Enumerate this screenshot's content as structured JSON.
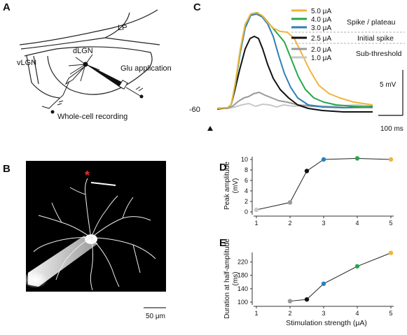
{
  "panels": {
    "a": {
      "letter": "A",
      "labels": {
        "lp": "LP",
        "dlgn": "dLGN",
        "vlgn": "vLGN",
        "glu": "Glu application",
        "wcr": "Whole-cell recording"
      }
    },
    "b": {
      "letter": "B",
      "scalebar": "50 μm",
      "marker": "*"
    },
    "c": {
      "letter": "C",
      "baseline_label": "-60",
      "scale_v": "5 mV",
      "scale_t": "100 ms",
      "legend": [
        {
          "label": "5.0 μA",
          "color": "#f0b43c"
        },
        {
          "label": "4.0 μA",
          "color": "#2aa64a"
        },
        {
          "label": "3.0 μA",
          "color": "#2c7fb8"
        },
        {
          "label": "2.5 μA",
          "color": "#111111"
        },
        {
          "label": "2.0 μA",
          "color": "#999999"
        },
        {
          "label": "1.0 μA",
          "color": "#c8c8c8"
        }
      ],
      "groups": {
        "spike_plateau": "Spike / plateau",
        "initial_spike": "Initial spike",
        "sub_threshold": "Sub-threshold"
      }
    },
    "d": {
      "letter": "D"
    },
    "e": {
      "letter": "E"
    }
  },
  "chart_data": [
    {
      "type": "line",
      "panel": "D",
      "ylabel_lines": [
        "Peak amplitude",
        "(mV)"
      ],
      "xlim": [
        1,
        5
      ],
      "ylim": [
        0,
        10
      ],
      "x_ticks": [
        "1",
        "2",
        "3",
        "4",
        "5"
      ],
      "y_ticks": [
        "0",
        "2",
        "4",
        "6",
        "8",
        "10"
      ],
      "x": [
        1.0,
        2.0,
        2.5,
        3.0,
        4.0,
        5.0
      ],
      "y": [
        0.4,
        1.8,
        7.8,
        10.0,
        10.2,
        10.0
      ],
      "point_colors": [
        "#c8c8c8",
        "#999999",
        "#111111",
        "#2c7fb8",
        "#2aa64a",
        "#f0b43c"
      ]
    },
    {
      "type": "line",
      "panel": "E",
      "ylabel_lines": [
        "Duration at half-amplitude",
        "(ms)"
      ],
      "xlabel": "Stimulation strength (μA)",
      "xlim": [
        1,
        5
      ],
      "ylim": [
        100,
        240
      ],
      "x_ticks": [
        "1",
        "2",
        "3",
        "4",
        "5"
      ],
      "y_ticks": [
        "100",
        "140",
        "180",
        "220"
      ],
      "x": [
        2.0,
        2.5,
        3.0,
        4.0,
        5.0
      ],
      "y": [
        103,
        108,
        155,
        207,
        247
      ],
      "point_colors": [
        "#999999",
        "#111111",
        "#2c7fb8",
        "#2aa64a",
        "#f0b43c"
      ]
    }
  ]
}
